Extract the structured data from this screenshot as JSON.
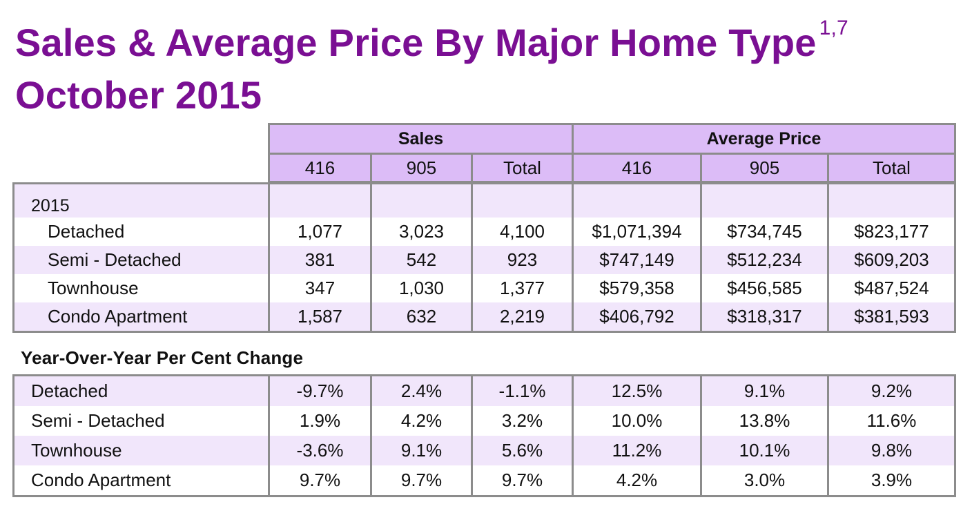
{
  "title": {
    "line1": "Sales & Average Price By Major Home Type",
    "superscript": "1,7",
    "line2": "October 2015"
  },
  "header": {
    "groups": [
      "Sales",
      "Average Price"
    ],
    "columns": [
      "416",
      "905",
      "Total",
      "416",
      "905",
      "Total"
    ]
  },
  "main_table": {
    "year_label": "2015",
    "rows": [
      {
        "label": "Detached",
        "values": [
          "1,077",
          "3,023",
          "4,100",
          "$1,071,394",
          "$734,745",
          "$823,177"
        ]
      },
      {
        "label": "Semi - Detached",
        "values": [
          "381",
          "542",
          "923",
          "$747,149",
          "$512,234",
          "$609,203"
        ]
      },
      {
        "label": "Townhouse",
        "values": [
          "347",
          "1,030",
          "1,377",
          "$579,358",
          "$456,585",
          "$487,524"
        ]
      },
      {
        "label": "Condo Apartment",
        "values": [
          "1,587",
          "632",
          "2,219",
          "$406,792",
          "$318,317",
          "$381,593"
        ]
      }
    ]
  },
  "yoy": {
    "heading": "Year-Over-Year Per Cent Change",
    "rows": [
      {
        "label": "Detached",
        "values": [
          "-9.7%",
          "2.4%",
          "-1.1%",
          "12.5%",
          "9.1%",
          "9.2%"
        ]
      },
      {
        "label": "Semi - Detached",
        "values": [
          "1.9%",
          "4.2%",
          "3.2%",
          "10.0%",
          "13.8%",
          "11.6%"
        ]
      },
      {
        "label": "Townhouse",
        "values": [
          "-3.6%",
          "9.1%",
          "5.6%",
          "11.2%",
          "10.1%",
          "9.8%"
        ]
      },
      {
        "label": "Condo Apartment",
        "values": [
          "9.7%",
          "9.7%",
          "9.7%",
          "4.2%",
          "3.0%",
          "3.9%"
        ]
      }
    ]
  },
  "colors": {
    "title": "#7a0f93",
    "header_fill": "#dcbcf7",
    "row_fill_alt": "#f1e6fb",
    "border": "#8c8c8c"
  }
}
